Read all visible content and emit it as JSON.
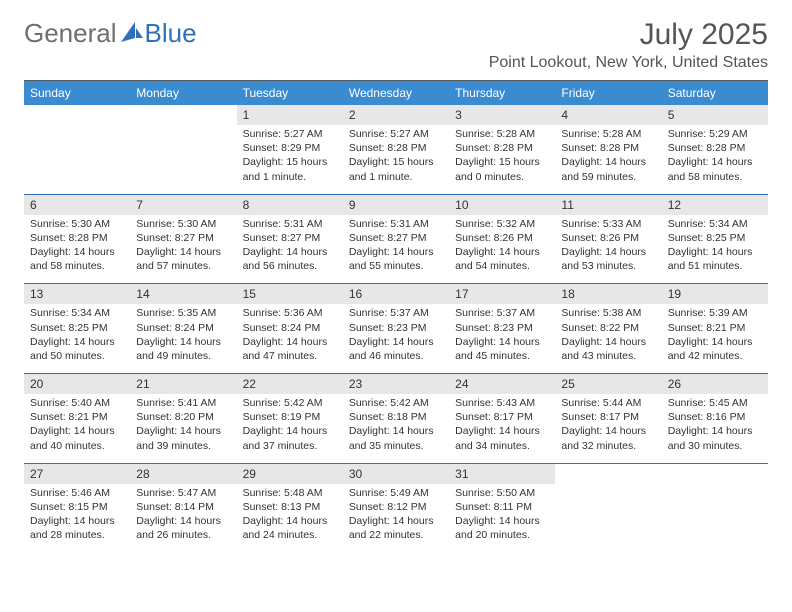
{
  "brand": {
    "general": "General",
    "blue": "Blue"
  },
  "title": "July 2025",
  "location": "Point Lookout, New York, United States",
  "colors": {
    "header_bg": "#3b8bd0",
    "header_text": "#ffffff",
    "daynum_bg": "#e7e7e7",
    "week_border": "#2f71b8",
    "top_border": "#5a5a5a",
    "text": "#333333",
    "logo_gray": "#6f6f6f",
    "logo_blue": "#2f71b8",
    "background": "#ffffff"
  },
  "typography": {
    "title_fontsize": 30,
    "location_fontsize": 16,
    "dow_fontsize": 12,
    "daynum_fontsize": 12,
    "cell_fontsize": 10.5,
    "logo_fontsize": 26
  },
  "layout": {
    "columns": 7,
    "rows": 5
  },
  "daysOfWeek": [
    "Sunday",
    "Monday",
    "Tuesday",
    "Wednesday",
    "Thursday",
    "Friday",
    "Saturday"
  ],
  "weeks": [
    [
      {
        "day": "",
        "sunrise": "",
        "sunset": "",
        "daylight": ""
      },
      {
        "day": "",
        "sunrise": "",
        "sunset": "",
        "daylight": ""
      },
      {
        "day": "1",
        "sunrise": "Sunrise: 5:27 AM",
        "sunset": "Sunset: 8:29 PM",
        "daylight": "Daylight: 15 hours and 1 minute."
      },
      {
        "day": "2",
        "sunrise": "Sunrise: 5:27 AM",
        "sunset": "Sunset: 8:28 PM",
        "daylight": "Daylight: 15 hours and 1 minute."
      },
      {
        "day": "3",
        "sunrise": "Sunrise: 5:28 AM",
        "sunset": "Sunset: 8:28 PM",
        "daylight": "Daylight: 15 hours and 0 minutes."
      },
      {
        "day": "4",
        "sunrise": "Sunrise: 5:28 AM",
        "sunset": "Sunset: 8:28 PM",
        "daylight": "Daylight: 14 hours and 59 minutes."
      },
      {
        "day": "5",
        "sunrise": "Sunrise: 5:29 AM",
        "sunset": "Sunset: 8:28 PM",
        "daylight": "Daylight: 14 hours and 58 minutes."
      }
    ],
    [
      {
        "day": "6",
        "sunrise": "Sunrise: 5:30 AM",
        "sunset": "Sunset: 8:28 PM",
        "daylight": "Daylight: 14 hours and 58 minutes."
      },
      {
        "day": "7",
        "sunrise": "Sunrise: 5:30 AM",
        "sunset": "Sunset: 8:27 PM",
        "daylight": "Daylight: 14 hours and 57 minutes."
      },
      {
        "day": "8",
        "sunrise": "Sunrise: 5:31 AM",
        "sunset": "Sunset: 8:27 PM",
        "daylight": "Daylight: 14 hours and 56 minutes."
      },
      {
        "day": "9",
        "sunrise": "Sunrise: 5:31 AM",
        "sunset": "Sunset: 8:27 PM",
        "daylight": "Daylight: 14 hours and 55 minutes."
      },
      {
        "day": "10",
        "sunrise": "Sunrise: 5:32 AM",
        "sunset": "Sunset: 8:26 PM",
        "daylight": "Daylight: 14 hours and 54 minutes."
      },
      {
        "day": "11",
        "sunrise": "Sunrise: 5:33 AM",
        "sunset": "Sunset: 8:26 PM",
        "daylight": "Daylight: 14 hours and 53 minutes."
      },
      {
        "day": "12",
        "sunrise": "Sunrise: 5:34 AM",
        "sunset": "Sunset: 8:25 PM",
        "daylight": "Daylight: 14 hours and 51 minutes."
      }
    ],
    [
      {
        "day": "13",
        "sunrise": "Sunrise: 5:34 AM",
        "sunset": "Sunset: 8:25 PM",
        "daylight": "Daylight: 14 hours and 50 minutes."
      },
      {
        "day": "14",
        "sunrise": "Sunrise: 5:35 AM",
        "sunset": "Sunset: 8:24 PM",
        "daylight": "Daylight: 14 hours and 49 minutes."
      },
      {
        "day": "15",
        "sunrise": "Sunrise: 5:36 AM",
        "sunset": "Sunset: 8:24 PM",
        "daylight": "Daylight: 14 hours and 47 minutes."
      },
      {
        "day": "16",
        "sunrise": "Sunrise: 5:37 AM",
        "sunset": "Sunset: 8:23 PM",
        "daylight": "Daylight: 14 hours and 46 minutes."
      },
      {
        "day": "17",
        "sunrise": "Sunrise: 5:37 AM",
        "sunset": "Sunset: 8:23 PM",
        "daylight": "Daylight: 14 hours and 45 minutes."
      },
      {
        "day": "18",
        "sunrise": "Sunrise: 5:38 AM",
        "sunset": "Sunset: 8:22 PM",
        "daylight": "Daylight: 14 hours and 43 minutes."
      },
      {
        "day": "19",
        "sunrise": "Sunrise: 5:39 AM",
        "sunset": "Sunset: 8:21 PM",
        "daylight": "Daylight: 14 hours and 42 minutes."
      }
    ],
    [
      {
        "day": "20",
        "sunrise": "Sunrise: 5:40 AM",
        "sunset": "Sunset: 8:21 PM",
        "daylight": "Daylight: 14 hours and 40 minutes."
      },
      {
        "day": "21",
        "sunrise": "Sunrise: 5:41 AM",
        "sunset": "Sunset: 8:20 PM",
        "daylight": "Daylight: 14 hours and 39 minutes."
      },
      {
        "day": "22",
        "sunrise": "Sunrise: 5:42 AM",
        "sunset": "Sunset: 8:19 PM",
        "daylight": "Daylight: 14 hours and 37 minutes."
      },
      {
        "day": "23",
        "sunrise": "Sunrise: 5:42 AM",
        "sunset": "Sunset: 8:18 PM",
        "daylight": "Daylight: 14 hours and 35 minutes."
      },
      {
        "day": "24",
        "sunrise": "Sunrise: 5:43 AM",
        "sunset": "Sunset: 8:17 PM",
        "daylight": "Daylight: 14 hours and 34 minutes."
      },
      {
        "day": "25",
        "sunrise": "Sunrise: 5:44 AM",
        "sunset": "Sunset: 8:17 PM",
        "daylight": "Daylight: 14 hours and 32 minutes."
      },
      {
        "day": "26",
        "sunrise": "Sunrise: 5:45 AM",
        "sunset": "Sunset: 8:16 PM",
        "daylight": "Daylight: 14 hours and 30 minutes."
      }
    ],
    [
      {
        "day": "27",
        "sunrise": "Sunrise: 5:46 AM",
        "sunset": "Sunset: 8:15 PM",
        "daylight": "Daylight: 14 hours and 28 minutes."
      },
      {
        "day": "28",
        "sunrise": "Sunrise: 5:47 AM",
        "sunset": "Sunset: 8:14 PM",
        "daylight": "Daylight: 14 hours and 26 minutes."
      },
      {
        "day": "29",
        "sunrise": "Sunrise: 5:48 AM",
        "sunset": "Sunset: 8:13 PM",
        "daylight": "Daylight: 14 hours and 24 minutes."
      },
      {
        "day": "30",
        "sunrise": "Sunrise: 5:49 AM",
        "sunset": "Sunset: 8:12 PM",
        "daylight": "Daylight: 14 hours and 22 minutes."
      },
      {
        "day": "31",
        "sunrise": "Sunrise: 5:50 AM",
        "sunset": "Sunset: 8:11 PM",
        "daylight": "Daylight: 14 hours and 20 minutes."
      },
      {
        "day": "",
        "sunrise": "",
        "sunset": "",
        "daylight": ""
      },
      {
        "day": "",
        "sunrise": "",
        "sunset": "",
        "daylight": ""
      }
    ]
  ]
}
